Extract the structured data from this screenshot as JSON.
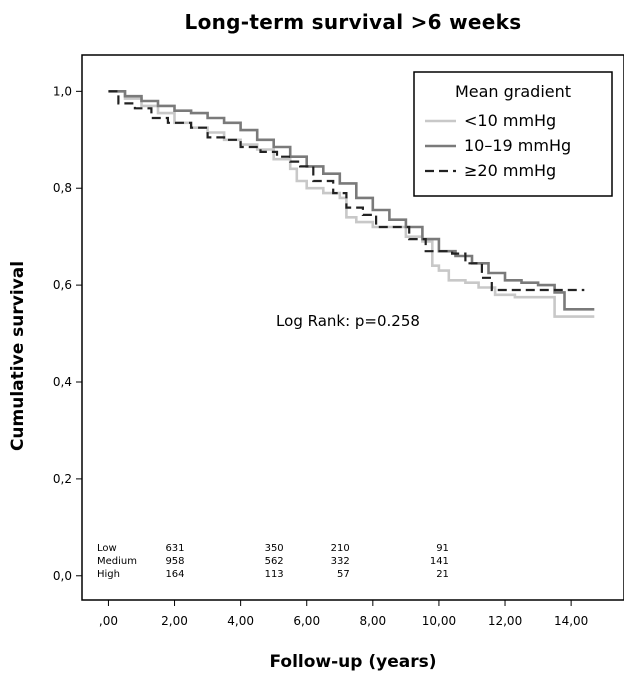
{
  "chart_data": {
    "type": "line",
    "title": "Long-term survival >6 weeks",
    "xlabel": "Follow-up (years)",
    "ylabel": "Cumulative survival",
    "xlim": [
      -0.8,
      15.6
    ],
    "ylim": [
      -0.05,
      1.075
    ],
    "x_ticks": [
      0,
      2,
      4,
      6,
      8,
      10,
      12,
      14
    ],
    "x_tick_labels": [
      ",00",
      "2,00",
      "4,00",
      "6,00",
      "8,00",
      "10,00",
      "12,00",
      "14,00"
    ],
    "y_ticks": [
      0,
      0.2,
      0.4,
      0.6,
      0.8,
      1.0
    ],
    "y_tick_labels": [
      "0,0",
      "0,2",
      "0,4",
      "0,6",
      "0,8",
      "1,0"
    ],
    "legend": {
      "title": "Mean gradient",
      "position": "top-right",
      "entries": [
        "<10 mmHg",
        "10–19 mmHg",
        "≥20 mmHg"
      ]
    },
    "annotation": "Log Rank: p=0.258",
    "series": [
      {
        "name": "<10 mmHg",
        "color": "#c8c8c8",
        "style": "solid",
        "x": [
          0,
          0.5,
          1.0,
          1.5,
          2.0,
          2.5,
          3.0,
          3.5,
          4.0,
          4.5,
          5.0,
          5.5,
          5.7,
          6.0,
          6.5,
          7.0,
          7.2,
          7.5,
          8.0,
          8.5,
          9.0,
          9.5,
          9.8,
          10.0,
          10.3,
          10.8,
          11.2,
          11.7,
          12.3,
          13.0,
          13.5,
          14.7
        ],
        "y": [
          1.0,
          0.985,
          0.97,
          0.955,
          0.935,
          0.925,
          0.915,
          0.9,
          0.89,
          0.88,
          0.86,
          0.84,
          0.815,
          0.8,
          0.79,
          0.78,
          0.74,
          0.73,
          0.72,
          0.72,
          0.7,
          0.69,
          0.64,
          0.63,
          0.61,
          0.605,
          0.595,
          0.58,
          0.575,
          0.575,
          0.535,
          0.535
        ]
      },
      {
        "name": "10–19 mmHg",
        "color": "#7a7a7a",
        "style": "solid",
        "x": [
          0,
          0.5,
          1.0,
          1.5,
          2.0,
          2.5,
          3.0,
          3.5,
          4.0,
          4.5,
          5.0,
          5.5,
          6.0,
          6.5,
          7.0,
          7.5,
          8.0,
          8.5,
          9.0,
          9.5,
          10.0,
          10.5,
          11.0,
          11.5,
          12.0,
          12.5,
          13.0,
          13.5,
          13.8,
          14.7
        ],
        "y": [
          1.0,
          0.99,
          0.98,
          0.97,
          0.96,
          0.955,
          0.945,
          0.935,
          0.92,
          0.9,
          0.885,
          0.865,
          0.845,
          0.83,
          0.81,
          0.78,
          0.755,
          0.735,
          0.72,
          0.695,
          0.67,
          0.66,
          0.645,
          0.625,
          0.61,
          0.605,
          0.6,
          0.585,
          0.55,
          0.55
        ]
      },
      {
        "name": "≥20 mmHg",
        "color": "#222222",
        "style": "dashed",
        "x": [
          0,
          0.3,
          0.8,
          1.3,
          1.8,
          2.5,
          3.0,
          3.5,
          4.0,
          4.6,
          5.1,
          5.5,
          5.8,
          6.2,
          6.8,
          7.2,
          7.7,
          8.1,
          8.6,
          9.1,
          9.6,
          10.0,
          10.4,
          10.8,
          11.3,
          11.6,
          12.1,
          12.6,
          13.2,
          14.4
        ],
        "y": [
          1.0,
          0.975,
          0.965,
          0.945,
          0.935,
          0.925,
          0.905,
          0.9,
          0.885,
          0.875,
          0.865,
          0.855,
          0.845,
          0.815,
          0.79,
          0.76,
          0.745,
          0.72,
          0.72,
          0.695,
          0.67,
          0.67,
          0.665,
          0.645,
          0.615,
          0.59,
          0.59,
          0.59,
          0.59,
          0.59
        ]
      }
    ],
    "risk_table": {
      "rows": [
        {
          "label": "Low",
          "values": [
            "631",
            "350",
            "210",
            "91"
          ]
        },
        {
          "label": "Medium",
          "values": [
            "958",
            "562",
            "332",
            "141"
          ]
        },
        {
          "label": "High",
          "values": [
            "164",
            "113",
            "57",
            "21"
          ]
        }
      ],
      "times": [
        2,
        5,
        7,
        10
      ]
    }
  }
}
